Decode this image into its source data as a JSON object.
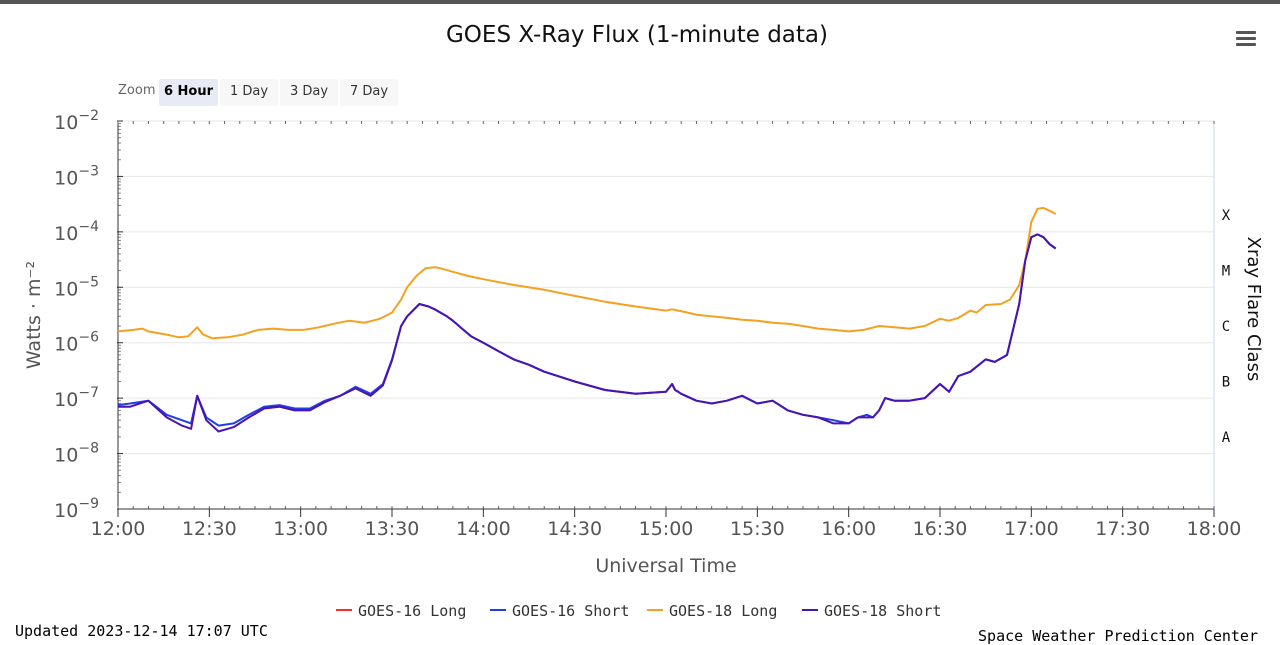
{
  "chart_data": {
    "type": "line",
    "title": "GOES X-Ray Flux (1-minute data)",
    "xlabel": "Universal Time",
    "ylabel": "Watts · m⁻²",
    "y2label": "Xray Flare Class",
    "y_scale": "log",
    "ylim": [
      1e-09,
      0.01
    ],
    "x_ticks": [
      "12:00",
      "12:30",
      "13:00",
      "13:30",
      "14:00",
      "14:30",
      "15:00",
      "15:30",
      "16:00",
      "16:30",
      "17:00",
      "17:30",
      "18:00"
    ],
    "y_ticks": [
      {
        "base": "10",
        "exp": "−2",
        "value": 0.01
      },
      {
        "base": "10",
        "exp": "−3",
        "value": 0.001
      },
      {
        "base": "10",
        "exp": "−4",
        "value": 0.0001
      },
      {
        "base": "10",
        "exp": "−5",
        "value": 1e-05
      },
      {
        "base": "10",
        "exp": "−6",
        "value": 1e-06
      },
      {
        "base": "10",
        "exp": "−7",
        "value": 1e-07
      },
      {
        "base": "10",
        "exp": "−8",
        "value": 1e-08
      },
      {
        "base": "10",
        "exp": "−9",
        "value": 1e-09
      }
    ],
    "flare_classes": [
      {
        "label": "X",
        "value": 0.0002
      },
      {
        "label": "M",
        "value": 2e-05
      },
      {
        "label": "C",
        "value": 2e-06
      },
      {
        "label": "B",
        "value": 2e-07
      },
      {
        "label": "A",
        "value": 2e-08
      }
    ],
    "grid": true,
    "legend_position": "bottom-center",
    "series": [
      {
        "name": "GOES-16 Long",
        "color": "#ff2b2b",
        "x": [],
        "y": []
      },
      {
        "name": "GOES-16 Short",
        "color": "#1f3fe6",
        "x": [
          "12:00",
          "12:04",
          "12:10",
          "12:16",
          "12:21",
          "12:24",
          "12:26",
          "12:29",
          "12:33",
          "12:38",
          "12:43",
          "12:48",
          "12:53",
          "12:58",
          "13:03",
          "13:08",
          "13:13",
          "13:18",
          "13:23",
          "13:27",
          "13:30",
          "13:33",
          "13:35",
          "13:39",
          "13:42",
          "13:44",
          "13:48",
          "13:50",
          "13:53",
          "13:56",
          "14:00",
          "14:05",
          "14:10",
          "14:15",
          "14:20",
          "14:30",
          "14:40",
          "14:50",
          "15:00",
          "15:02",
          "15:03",
          "15:04",
          "15:05",
          "15:10",
          "15:15",
          "15:20",
          "15:25",
          "15:30",
          "15:35",
          "15:40",
          "15:45",
          "15:50",
          "15:55",
          "16:00",
          "16:03",
          "16:06",
          "16:08",
          "16:10",
          "16:12",
          "16:15",
          "16:20",
          "16:25",
          "16:30",
          "16:33",
          "16:36",
          "16:40",
          "16:45",
          "16:48",
          "16:52",
          "16:56",
          "16:58",
          "17:00",
          "17:02",
          "17:04",
          "17:06",
          "17:08"
        ],
        "y": [
          7.5e-08,
          8e-08,
          9e-08,
          5e-08,
          4e-08,
          3.5e-08,
          1.1e-07,
          4.5e-08,
          3.2e-08,
          3.5e-08,
          5e-08,
          7e-08,
          7.5e-08,
          6.5e-08,
          6.5e-08,
          9e-08,
          1.1e-07,
          1.6e-07,
          1.2e-07,
          1.8e-07,
          5e-07,
          2e-06,
          3e-06,
          5e-06,
          4.5e-06,
          4e-06,
          3e-06,
          2.5e-06,
          1.8e-06,
          1.3e-06,
          1e-06,
          7e-07,
          5e-07,
          4e-07,
          3e-07,
          2e-07,
          1.4e-07,
          1.2e-07,
          1.3e-07,
          1.8e-07,
          1.4e-07,
          1.3e-07,
          1.2e-07,
          9e-08,
          8e-08,
          9e-08,
          1.1e-07,
          8e-08,
          9e-08,
          6e-08,
          5e-08,
          4.5e-08,
          4e-08,
          3.5e-08,
          4.5e-08,
          5e-08,
          4.5e-08,
          6e-08,
          1e-07,
          9e-08,
          9e-08,
          1e-07,
          1.8e-07,
          1.3e-07,
          2.5e-07,
          3e-07,
          5e-07,
          4.5e-07,
          6e-07,
          5e-06,
          3e-05,
          8e-05,
          9e-05,
          8e-05,
          6e-05,
          5e-05
        ]
      },
      {
        "name": "GOES-18 Long",
        "color": "#f6a021",
        "x": [
          "12:00",
          "12:05",
          "12:08",
          "12:10",
          "12:16",
          "12:20",
          "12:23",
          "12:26",
          "12:28",
          "12:31",
          "12:36",
          "12:41",
          "12:46",
          "12:51",
          "12:56",
          "13:01",
          "13:06",
          "13:11",
          "13:16",
          "13:21",
          "13:26",
          "13:30",
          "13:33",
          "13:35",
          "13:38",
          "13:41",
          "13:44",
          "13:46",
          "13:50",
          "13:55",
          "14:00",
          "14:10",
          "14:20",
          "14:30",
          "14:40",
          "14:50",
          "15:00",
          "15:02",
          "15:04",
          "15:06",
          "15:10",
          "15:20",
          "15:25",
          "15:30",
          "15:35",
          "15:40",
          "15:45",
          "15:50",
          "15:55",
          "16:00",
          "16:05",
          "16:10",
          "16:15",
          "16:20",
          "16:25",
          "16:30",
          "16:33",
          "16:36",
          "16:40",
          "16:42",
          "16:45",
          "16:50",
          "16:53",
          "16:56",
          "16:58",
          "17:00",
          "17:02",
          "17:04",
          "17:06",
          "17:08"
        ],
        "y": [
          1.6e-06,
          1.7e-06,
          1.8e-06,
          1.6e-06,
          1.4e-06,
          1.25e-06,
          1.3e-06,
          1.9e-06,
          1.4e-06,
          1.2e-06,
          1.25e-06,
          1.4e-06,
          1.7e-06,
          1.8e-06,
          1.7e-06,
          1.7e-06,
          1.9e-06,
          2.2e-06,
          2.5e-06,
          2.3e-06,
          2.7e-06,
          3.5e-06,
          6e-06,
          1e-05,
          1.6e-05,
          2.2e-05,
          2.3e-05,
          2.2e-05,
          1.9e-05,
          1.6e-05,
          1.4e-05,
          1.1e-05,
          9e-06,
          7e-06,
          5.5e-06,
          4.5e-06,
          3.8e-06,
          4e-06,
          3.8e-06,
          3.6e-06,
          3.2e-06,
          2.8e-06,
          2.6e-06,
          2.5e-06,
          2.3e-06,
          2.2e-06,
          2e-06,
          1.8e-06,
          1.7e-06,
          1.6e-06,
          1.7e-06,
          2e-06,
          1.9e-06,
          1.8e-06,
          2e-06,
          2.7e-06,
          2.5e-06,
          2.8e-06,
          3.8e-06,
          3.5e-06,
          4.8e-06,
          5e-06,
          6e-06,
          1.1e-05,
          3e-05,
          0.00015,
          0.00026,
          0.00027,
          0.00024,
          0.00021
        ]
      },
      {
        "name": "GOES-18 Short",
        "color": "#4b13b0",
        "x": [
          "12:00",
          "12:04",
          "12:10",
          "12:16",
          "12:21",
          "12:24",
          "12:26",
          "12:29",
          "12:33",
          "12:38",
          "12:43",
          "12:48",
          "12:53",
          "12:58",
          "13:03",
          "13:08",
          "13:13",
          "13:18",
          "13:23",
          "13:27",
          "13:30",
          "13:33",
          "13:35",
          "13:39",
          "13:42",
          "13:44",
          "13:48",
          "13:50",
          "13:53",
          "13:56",
          "14:00",
          "14:05",
          "14:10",
          "14:15",
          "14:20",
          "14:30",
          "14:40",
          "14:50",
          "15:00",
          "15:02",
          "15:03",
          "15:04",
          "15:05",
          "15:10",
          "15:15",
          "15:20",
          "15:25",
          "15:30",
          "15:35",
          "15:40",
          "15:45",
          "15:50",
          "15:55",
          "16:00",
          "16:03",
          "16:06",
          "16:08",
          "16:10",
          "16:12",
          "16:15",
          "16:20",
          "16:25",
          "16:30",
          "16:33",
          "16:36",
          "16:40",
          "16:45",
          "16:48",
          "16:52",
          "16:56",
          "16:58",
          "17:00",
          "17:02",
          "17:04",
          "17:06",
          "17:08"
        ],
        "y": [
          7e-08,
          7e-08,
          9e-08,
          4.5e-08,
          3.2e-08,
          2.8e-08,
          1.1e-07,
          4e-08,
          2.5e-08,
          3e-08,
          4.5e-08,
          6.5e-08,
          7e-08,
          6e-08,
          6e-08,
          8.5e-08,
          1.1e-07,
          1.5e-07,
          1.1e-07,
          1.7e-07,
          4.8e-07,
          2e-06,
          3e-06,
          5e-06,
          4.5e-06,
          4e-06,
          3e-06,
          2.5e-06,
          1.8e-06,
          1.3e-06,
          1e-06,
          7e-07,
          5e-07,
          4e-07,
          3e-07,
          2e-07,
          1.4e-07,
          1.2e-07,
          1.3e-07,
          1.8e-07,
          1.4e-07,
          1.3e-07,
          1.2e-07,
          9e-08,
          8e-08,
          9e-08,
          1.1e-07,
          8e-08,
          9e-08,
          6e-08,
          5e-08,
          4.5e-08,
          3.5e-08,
          3.5e-08,
          4.5e-08,
          4.5e-08,
          4.5e-08,
          6e-08,
          1e-07,
          9e-08,
          9e-08,
          1e-07,
          1.8e-07,
          1.3e-07,
          2.5e-07,
          3e-07,
          5e-07,
          4.5e-07,
          6e-07,
          5e-06,
          3e-05,
          8e-05,
          9e-05,
          8e-05,
          6e-05,
          5e-05
        ]
      }
    ]
  },
  "zoom": {
    "label": "Zoom",
    "buttons": [
      {
        "label": "6 Hour",
        "active": true
      },
      {
        "label": "1 Day",
        "active": false
      },
      {
        "label": "3 Day",
        "active": false
      },
      {
        "label": "7 Day",
        "active": false
      }
    ]
  },
  "footer": {
    "updated": "Updated 2023-12-14 17:07 UTC",
    "credit": "Space Weather Prediction Center"
  },
  "icons": {
    "menu": "hamburger-menu-icon"
  }
}
